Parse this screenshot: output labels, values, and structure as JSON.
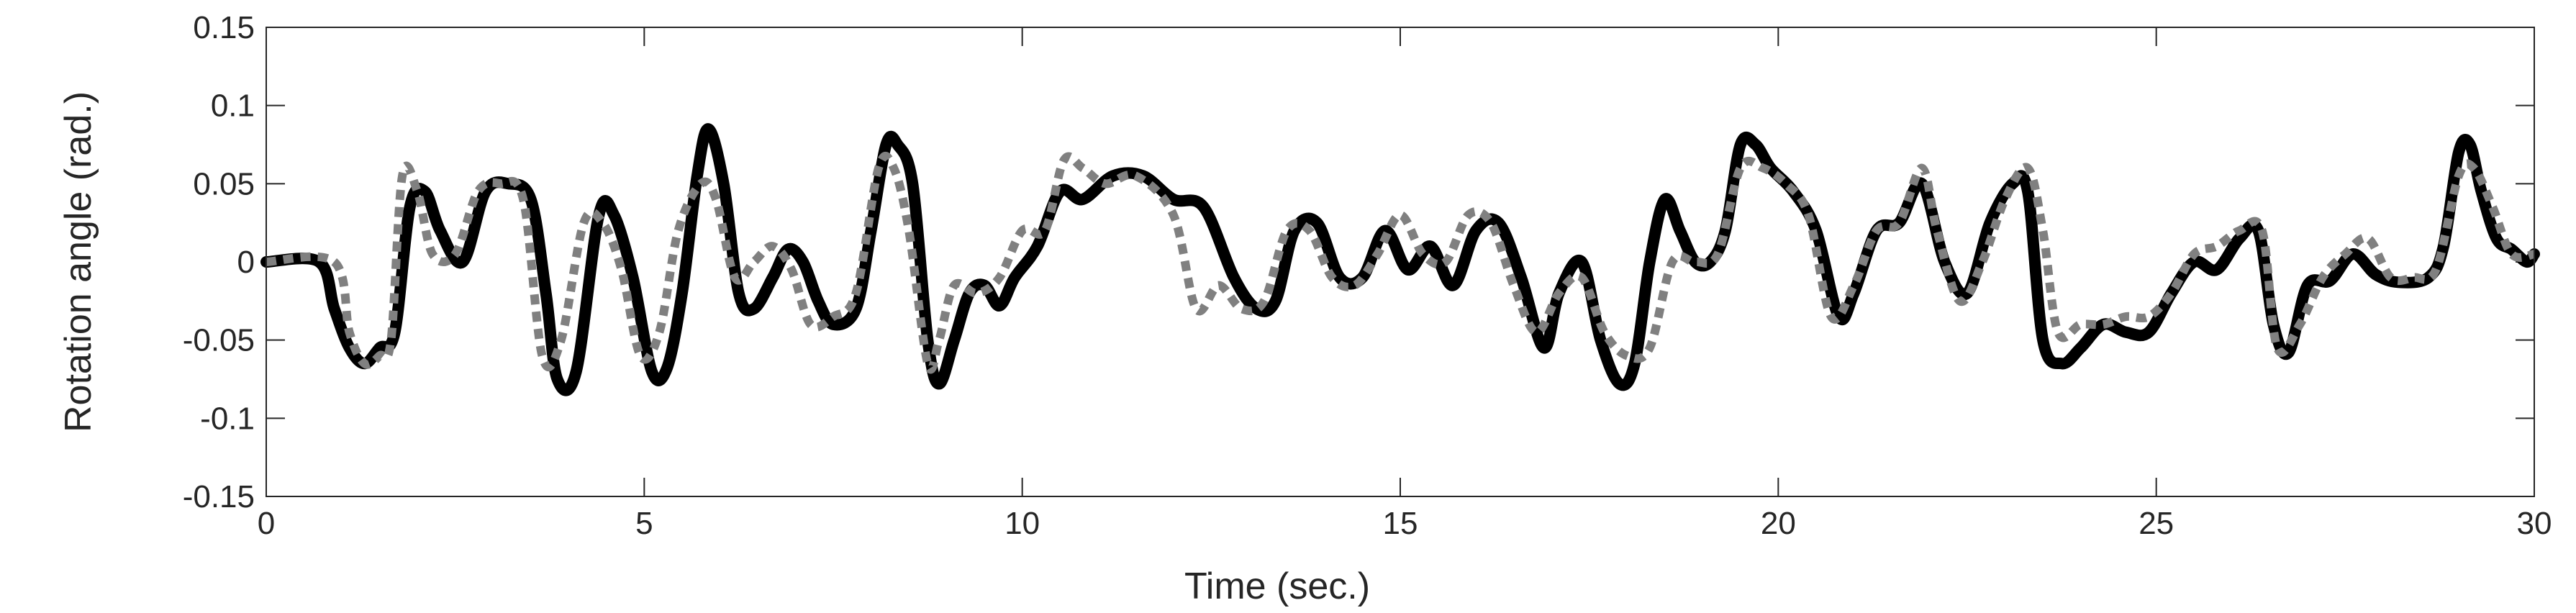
{
  "chart_data": {
    "type": "line",
    "title": "",
    "xlabel": "Time (sec.)",
    "ylabel": "Rotation angle (rad.)",
    "xlim": [
      0,
      30
    ],
    "ylim": [
      -0.15,
      0.15
    ],
    "xticks": [
      0,
      5,
      10,
      15,
      20,
      25,
      30
    ],
    "xtick_labels": [
      "0",
      "5",
      "10",
      "15",
      "20",
      "25",
      "30"
    ],
    "yticks": [
      0.15,
      0.1,
      0.05,
      0,
      -0.05,
      -0.1,
      -0.15
    ],
    "ytick_labels": [
      "0.15",
      "0.1",
      "0.05",
      "0",
      "-0.05",
      "-0.1",
      "-0.15"
    ],
    "grid": false,
    "legend": "none",
    "series": [
      {
        "color": "#000000",
        "style": "solid",
        "x": [
          0,
          0.7,
          0.9,
          1.1,
          1.3,
          1.5,
          1.7,
          1.9,
          2.1,
          2.3,
          2.6,
          2.9,
          3.2,
          3.5,
          3.7,
          3.85,
          4.1,
          4.4,
          4.6,
          4.85,
          5.1,
          5.3,
          5.5,
          5.7,
          5.85,
          6.05,
          6.25,
          6.45,
          6.7,
          6.9,
          7.1,
          7.3,
          7.5,
          7.8,
          8.0,
          8.2,
          8.35,
          8.55,
          8.75,
          8.9,
          9.1,
          9.3,
          9.5,
          9.7,
          9.9,
          10.2,
          10.5,
          10.8,
          11.2,
          11.6,
          12.0,
          12.4,
          12.8,
          13.1,
          13.35,
          13.6,
          13.9,
          14.2,
          14.5,
          14.8,
          15.1,
          15.4,
          15.7,
          16.0,
          16.3,
          16.6,
          16.9,
          17.1,
          17.4,
          17.65,
          17.9,
          18.1,
          18.3,
          18.5,
          18.7,
          18.9,
          19.1,
          19.3,
          19.5,
          19.7,
          19.9,
          20.2,
          20.5,
          20.8,
          21.0,
          21.3,
          21.6,
          21.9,
          22.2,
          22.5,
          22.8,
          23.1,
          23.3,
          23.5,
          23.75,
          24.0,
          24.3,
          24.6,
          24.9,
          25.2,
          25.5,
          25.8,
          26.1,
          26.35,
          26.55,
          26.75,
          27.0,
          27.3,
          27.6,
          27.9,
          28.2,
          28.6,
          28.8,
          29.0,
          29.15,
          29.3,
          29.5,
          29.7,
          29.9,
          30.0
        ],
        "y": [
          0.0,
          0.0,
          -0.03,
          -0.055,
          -0.065,
          -0.055,
          -0.045,
          0.035,
          0.045,
          0.02,
          0.0,
          0.045,
          0.05,
          0.04,
          -0.02,
          -0.075,
          -0.07,
          0.03,
          0.03,
          -0.01,
          -0.07,
          -0.068,
          -0.02,
          0.055,
          0.085,
          0.05,
          -0.02,
          -0.03,
          -0.01,
          0.008,
          0.0,
          -0.025,
          -0.04,
          -0.03,
          0.02,
          0.075,
          0.075,
          0.05,
          -0.05,
          -0.078,
          -0.05,
          -0.02,
          -0.015,
          -0.028,
          -0.01,
          0.01,
          0.045,
          0.04,
          0.055,
          0.055,
          0.04,
          0.035,
          -0.01,
          -0.03,
          -0.025,
          0.02,
          0.025,
          -0.01,
          -0.01,
          0.02,
          -0.005,
          0.01,
          -0.015,
          0.02,
          0.025,
          -0.01,
          -0.055,
          -0.02,
          0.0,
          -0.05,
          -0.078,
          -0.065,
          0.0,
          0.04,
          0.02,
          0.0,
          0.0,
          0.02,
          0.075,
          0.075,
          0.06,
          0.045,
          0.02,
          -0.035,
          -0.02,
          0.02,
          0.025,
          0.05,
          0.0,
          -0.02,
          0.025,
          0.05,
          0.045,
          -0.05,
          -0.065,
          -0.055,
          -0.04,
          -0.045,
          -0.045,
          -0.02,
          0.0,
          -0.005,
          0.015,
          0.02,
          -0.04,
          -0.058,
          -0.015,
          -0.012,
          0.005,
          -0.008,
          -0.013,
          -0.01,
          0.01,
          0.07,
          0.075,
          0.045,
          0.015,
          0.008,
          0.0,
          0.005
        ]
      },
      {
        "color": "#808080",
        "style": "dotted",
        "x": [
          0,
          0.9,
          1.1,
          1.3,
          1.5,
          1.65,
          1.8,
          2.0,
          2.2,
          2.5,
          2.8,
          3.1,
          3.4,
          3.65,
          3.9,
          4.2,
          4.45,
          4.7,
          4.95,
          5.2,
          5.45,
          5.75,
          5.95,
          6.2,
          6.45,
          6.7,
          6.95,
          7.2,
          7.5,
          7.8,
          8.1,
          8.3,
          8.5,
          8.75,
          8.9,
          9.1,
          9.4,
          9.7,
          10.0,
          10.3,
          10.55,
          10.8,
          11.1,
          11.5,
          12.0,
          12.3,
          12.6,
          12.9,
          13.2,
          13.5,
          13.8,
          14.1,
          14.4,
          14.7,
          15.0,
          15.3,
          15.6,
          15.9,
          16.2,
          16.5,
          16.8,
          17.1,
          17.4,
          17.7,
          18.0,
          18.3,
          18.6,
          18.9,
          19.2,
          19.5,
          19.8,
          20.1,
          20.4,
          20.7,
          21.0,
          21.3,
          21.6,
          21.9,
          22.1,
          22.4,
          22.7,
          23.0,
          23.3,
          23.5,
          23.7,
          24.0,
          24.3,
          24.6,
          24.9,
          25.2,
          25.5,
          25.8,
          26.1,
          26.4,
          26.6,
          26.9,
          27.2,
          27.5,
          27.8,
          28.1,
          28.4,
          28.7,
          29.0,
          29.2,
          29.45,
          29.7,
          30.0
        ],
        "y": [
          0.0,
          0.0,
          -0.045,
          -0.065,
          -0.06,
          -0.05,
          0.055,
          0.045,
          0.005,
          0.005,
          0.045,
          0.05,
          0.04,
          -0.06,
          -0.05,
          0.025,
          0.025,
          -0.005,
          -0.06,
          -0.045,
          0.02,
          0.05,
          0.04,
          -0.01,
          0.0,
          0.01,
          -0.005,
          -0.04,
          -0.035,
          -0.02,
          0.06,
          0.06,
          0.02,
          -0.065,
          -0.05,
          -0.015,
          -0.02,
          -0.01,
          0.02,
          0.02,
          0.065,
          0.06,
          0.05,
          0.055,
          0.03,
          -0.03,
          -0.015,
          -0.03,
          -0.025,
          0.02,
          0.02,
          -0.01,
          -0.015,
          0.005,
          0.03,
          0.005,
          0.0,
          0.03,
          0.025,
          -0.015,
          -0.045,
          -0.02,
          -0.01,
          -0.045,
          -0.06,
          -0.055,
          0.0,
          0.0,
          0.005,
          0.06,
          0.06,
          0.05,
          0.03,
          -0.035,
          -0.015,
          0.02,
          0.025,
          0.06,
          0.02,
          -0.025,
          0.0,
          0.04,
          0.06,
          0.02,
          -0.045,
          -0.04,
          -0.04,
          -0.035,
          -0.035,
          -0.02,
          0.005,
          0.01,
          0.02,
          0.02,
          -0.055,
          -0.04,
          -0.01,
          0.005,
          0.015,
          -0.01,
          -0.01,
          -0.005,
          0.055,
          0.06,
          0.035,
          0.005,
          0.005
        ]
      }
    ]
  }
}
